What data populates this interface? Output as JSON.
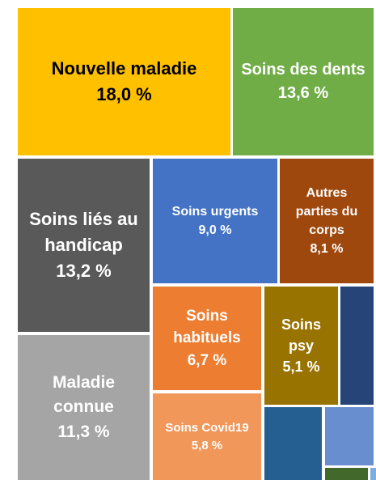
{
  "chart_data": {
    "type": "treemap",
    "categories": [
      "Nouvelle maladie",
      "Soins des dents",
      "Soins liés au handicap",
      "Maladie connue",
      "Soins urgents",
      "Autres parties du corps",
      "Soins habituels",
      "Soins psy",
      null,
      "Soins Covid19",
      null,
      null,
      null,
      null
    ],
    "values": [
      18.0,
      13.6,
      13.2,
      11.3,
      9.0,
      8.1,
      6.7,
      5.1,
      2.3,
      5.8,
      2.4,
      1.6,
      0.3,
      0.1
    ],
    "value_labels": [
      "18,0 %",
      "13,6 %",
      "13,2 %",
      "11,3 %",
      "9,0 %",
      "8,1 %",
      "6,7 %",
      "5,1 %",
      null,
      "5,8 %",
      null,
      null,
      null,
      null
    ],
    "colors": [
      "#FFC000",
      "#70AD47",
      "#595959",
      "#A5A5A5",
      "#4472C4",
      "#9E480E",
      "#ED7D31",
      "#997300",
      "#264478",
      "#F1975A",
      "#255E91",
      "#698ED0",
      "#43682B",
      "#7CAFDD"
    ]
  }
}
